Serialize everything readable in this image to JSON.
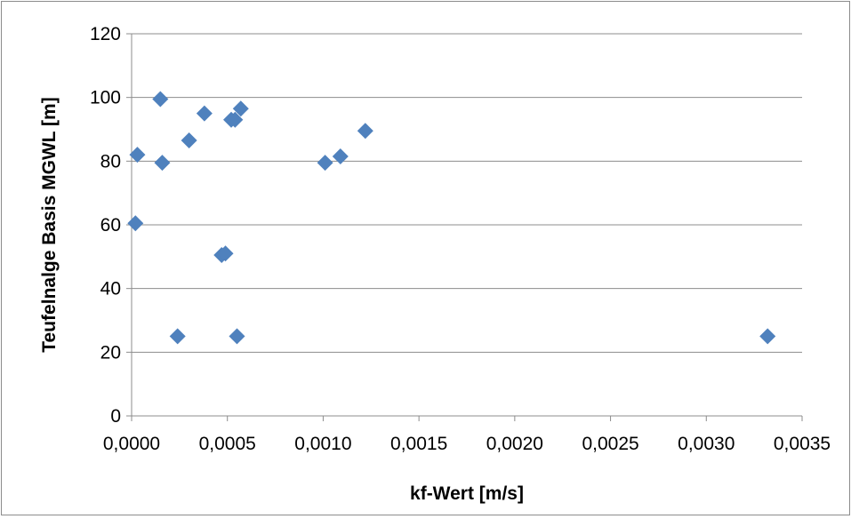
{
  "chart_data": {
    "type": "scatter",
    "title": "",
    "xlabel": "kf-Wert [m/s]",
    "ylabel": "Teufelnalge Basis MGWL [m]",
    "xlim": [
      0,
      0.0035
    ],
    "ylim": [
      0,
      120
    ],
    "x_ticks": [
      "0,0000",
      "0,0005",
      "0,0010",
      "0,0015",
      "0,0020",
      "0,0025",
      "0,0030",
      "0,0035"
    ],
    "y_ticks": [
      "0",
      "20",
      "40",
      "60",
      "80",
      "100",
      "120"
    ],
    "grid": "horizontal",
    "legend": "none",
    "marker": "diamond",
    "color": "#4f81bd",
    "series": [
      {
        "points": [
          {
            "x": 2e-05,
            "y": 60.5
          },
          {
            "x": 3e-05,
            "y": 82
          },
          {
            "x": 0.00015,
            "y": 99.5
          },
          {
            "x": 0.00016,
            "y": 79.5
          },
          {
            "x": 0.00024,
            "y": 25
          },
          {
            "x": 0.0003,
            "y": 86.5
          },
          {
            "x": 0.00038,
            "y": 95
          },
          {
            "x": 0.00047,
            "y": 50.5
          },
          {
            "x": 0.00049,
            "y": 51
          },
          {
            "x": 0.00052,
            "y": 93
          },
          {
            "x": 0.00054,
            "y": 93
          },
          {
            "x": 0.00055,
            "y": 25
          },
          {
            "x": 0.00057,
            "y": 96.5
          },
          {
            "x": 0.00101,
            "y": 79.5
          },
          {
            "x": 0.00109,
            "y": 81.5
          },
          {
            "x": 0.00122,
            "y": 89.5
          },
          {
            "x": 0.00332,
            "y": 25
          }
        ]
      }
    ]
  }
}
